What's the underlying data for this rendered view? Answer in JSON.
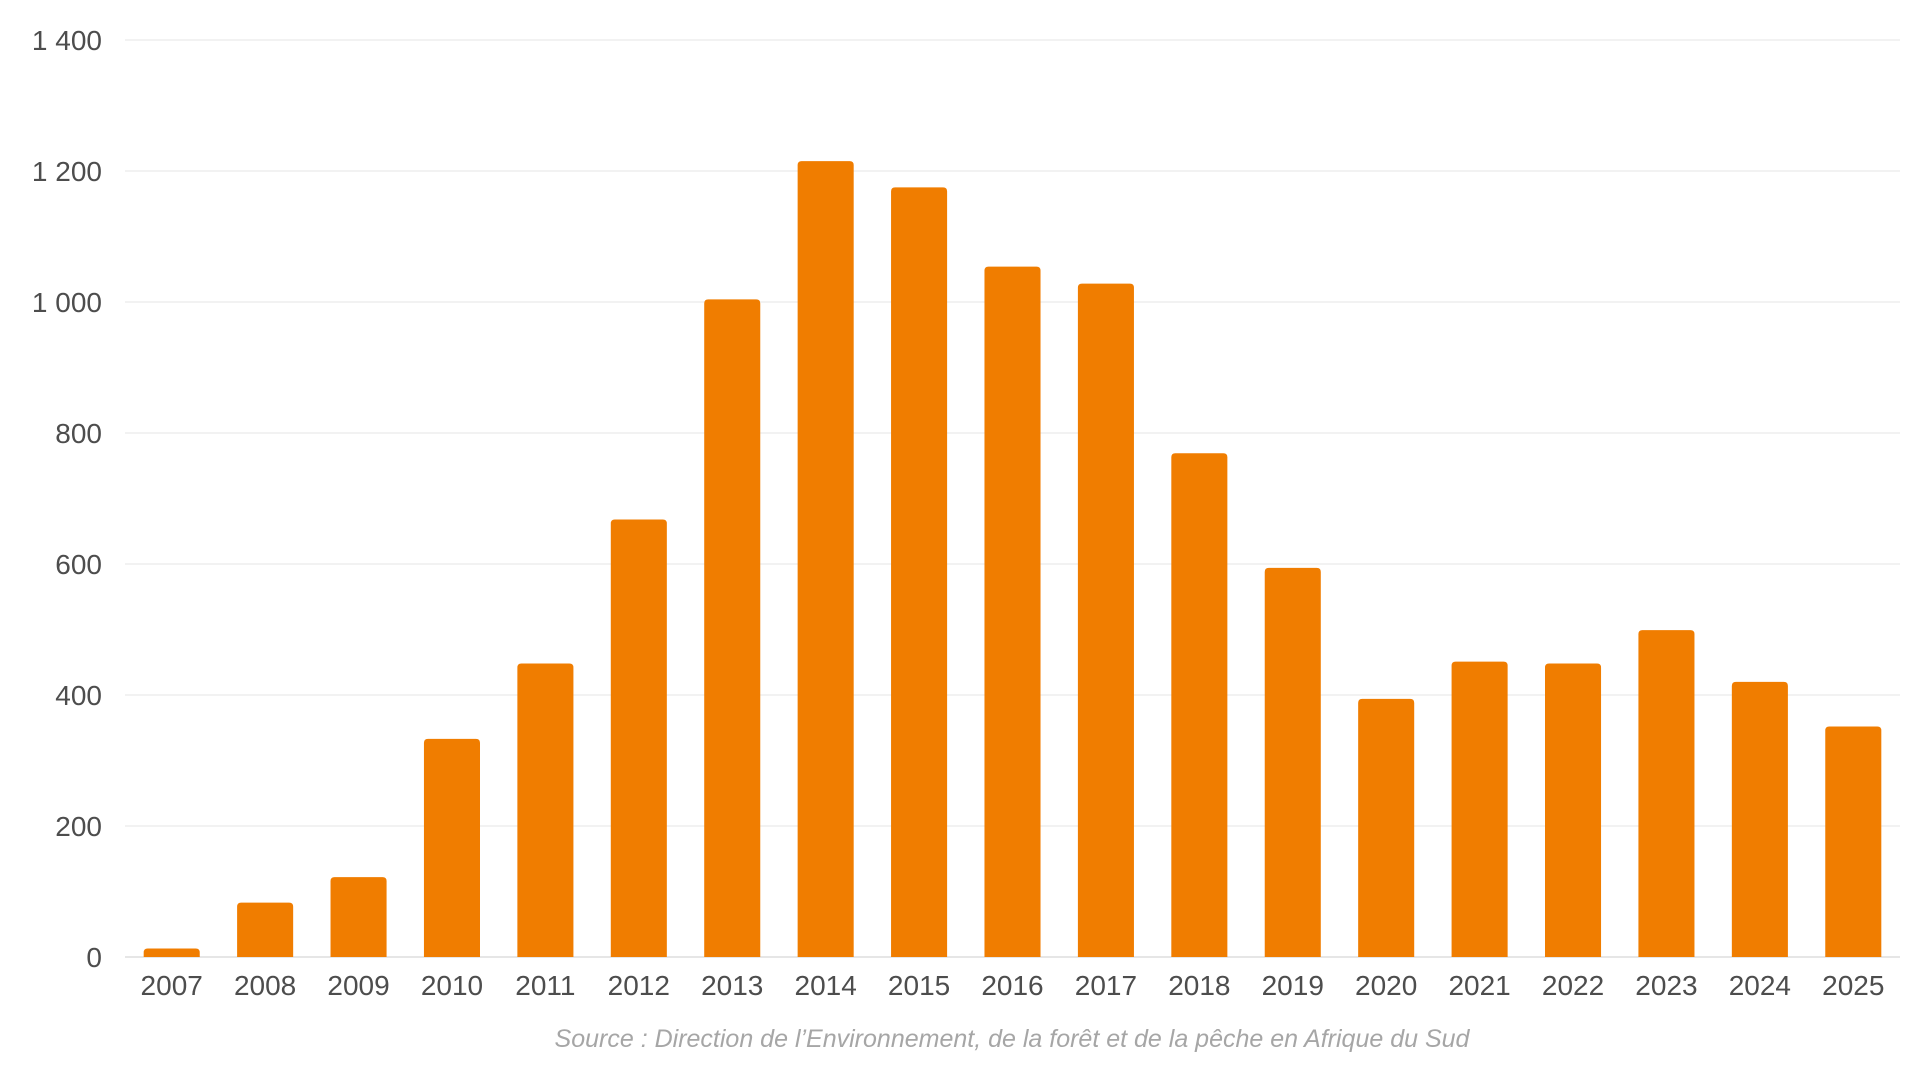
{
  "chart_data": {
    "type": "bar",
    "categories": [
      "2007",
      "2008",
      "2009",
      "2010",
      "2011",
      "2012",
      "2013",
      "2014",
      "2015",
      "2016",
      "2017",
      "2018",
      "2019",
      "2020",
      "2021",
      "2022",
      "2023",
      "2024",
      "2025"
    ],
    "values": [
      13,
      83,
      122,
      333,
      448,
      668,
      1004,
      1215,
      1175,
      1054,
      1028,
      769,
      594,
      394,
      451,
      448,
      499,
      420,
      352
    ],
    "ylim": [
      0,
      1400
    ],
    "yticks": [
      0,
      200,
      400,
      600,
      800,
      1000,
      1200,
      1400
    ],
    "ytick_labels": [
      "0",
      "200",
      "400",
      "600",
      "800",
      "1 000",
      "1 200",
      "1 400"
    ],
    "grid": true,
    "bar_color": "#f07d00",
    "title": "",
    "xlabel": "",
    "ylabel": ""
  },
  "source": "Source : Direction de l’Environnement, de la forêt et de la pêche en Afrique du Sud"
}
